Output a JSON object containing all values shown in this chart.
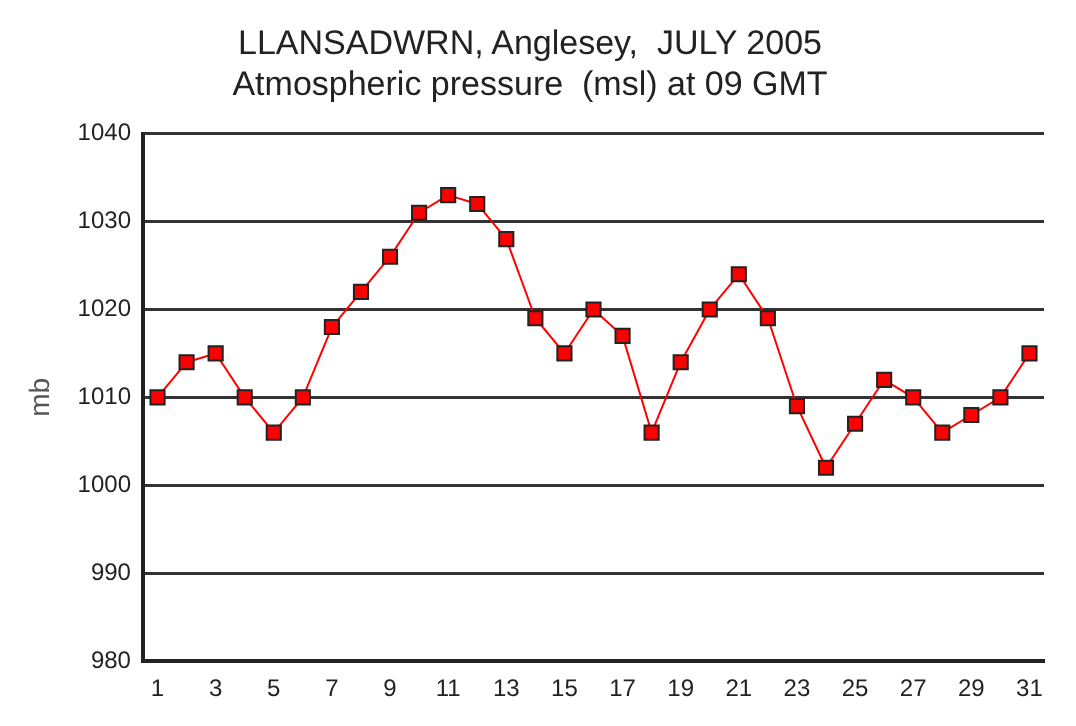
{
  "chart_data": {
    "type": "line",
    "title": "LLANSADWRN, Anglesey,  JULY 2005",
    "subtitle": "Atmospheric pressure  (msl) at 09 GMT",
    "ylabel": "mb",
    "x": [
      1,
      2,
      3,
      4,
      5,
      6,
      7,
      8,
      9,
      10,
      11,
      12,
      13,
      14,
      15,
      16,
      17,
      18,
      19,
      20,
      21,
      22,
      23,
      24,
      25,
      26,
      27,
      28,
      29,
      30,
      31
    ],
    "xlim": [
      0.5,
      31.5
    ],
    "xticks": [
      1,
      3,
      5,
      7,
      9,
      11,
      13,
      15,
      17,
      19,
      21,
      23,
      25,
      27,
      29,
      31
    ],
    "series": [
      {
        "color": "#ff0000",
        "values": [
          1010,
          1014,
          1015,
          1010,
          1006,
          1010,
          1018,
          1022,
          1026,
          1031,
          1033,
          1032,
          1028,
          1019,
          1015,
          1020,
          1017,
          1006,
          1014,
          1020,
          1024,
          1019,
          1009,
          1002,
          1007,
          1012,
          1010,
          1006,
          1008,
          1010,
          1015
        ]
      }
    ],
    "ylim": [
      980,
      1040
    ],
    "yticks": [
      980,
      990,
      1000,
      1010,
      1020,
      1030,
      1040
    ],
    "grid": "y",
    "legend": false,
    "marker": "square",
    "line_style": "solid"
  }
}
